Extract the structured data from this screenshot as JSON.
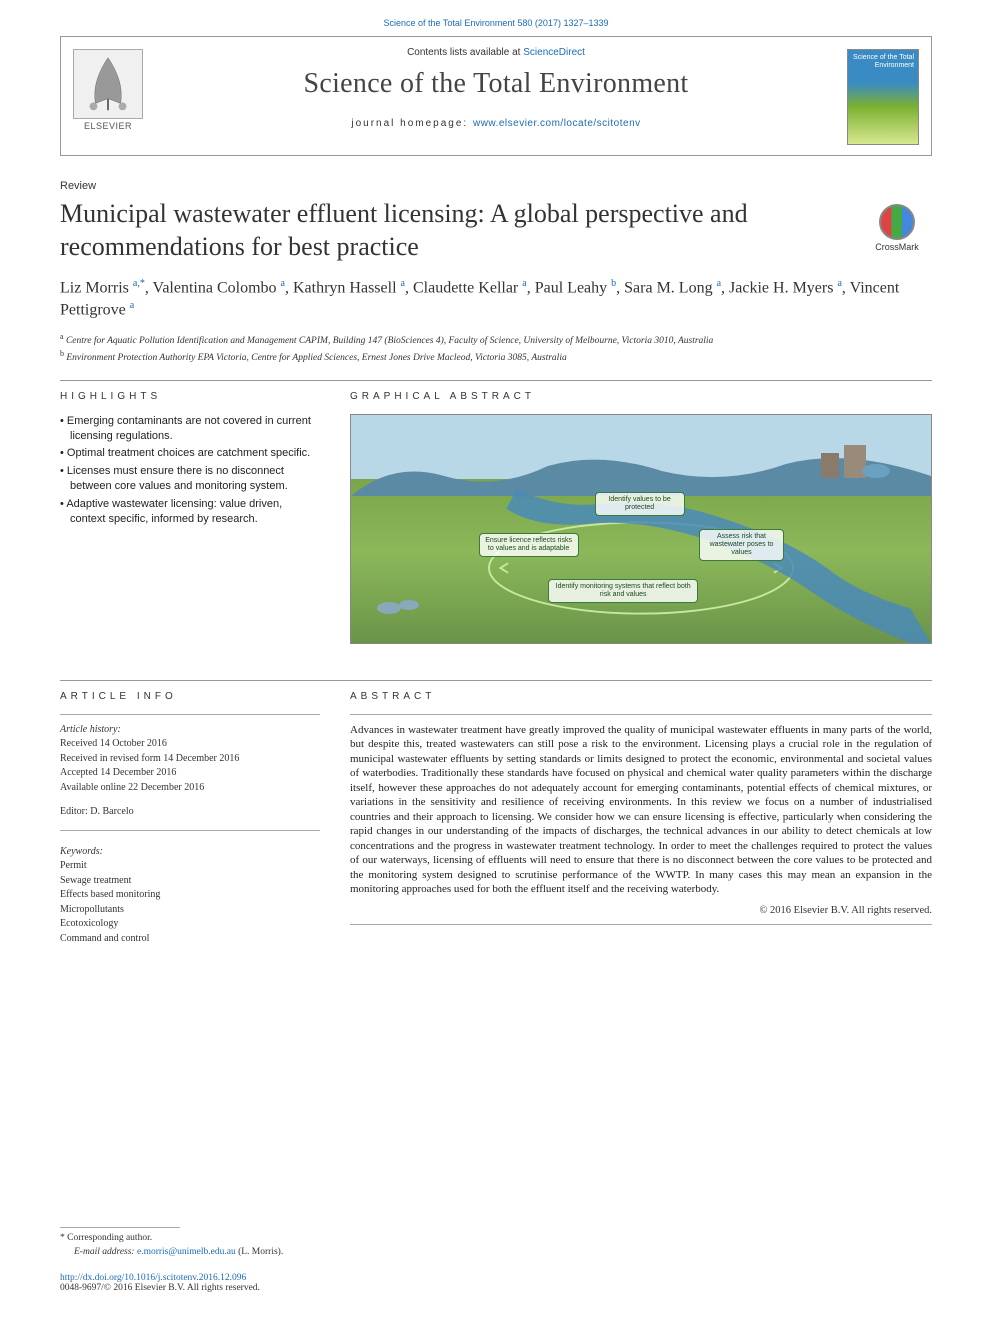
{
  "top_citation": "Science of the Total Environment 580 (2017) 1327–1339",
  "header": {
    "contents_prefix": "Contents lists available at ",
    "contents_link": "ScienceDirect",
    "journal_name": "Science of the Total Environment",
    "homepage_prefix": "journal homepage: ",
    "homepage_url": "www.elsevier.com/locate/scitotenv",
    "publisher": "ELSEVIER",
    "cover_text": "Science of the\nTotal Environment"
  },
  "article_type": "Review",
  "title": "Municipal wastewater effluent licensing: A global perspective and recommendations for best practice",
  "crossmark": "CrossMark",
  "authors_html": "Liz Morris <sup>a,*</sup>, Valentina Colombo <sup>a</sup>, Kathryn Hassell <sup>a</sup>, Claudette Kellar <sup>a</sup>, Paul Leahy <sup>b</sup>, Sara M. Long <sup>a</sup>, Jackie H. Myers <sup>a</sup>, Vincent Pettigrove <sup>a</sup>",
  "affiliations": [
    {
      "sup": "a",
      "text": "Centre for Aquatic Pollution Identification and Management CAPIM, Building 147 (BioSciences 4), Faculty of Science, University of Melbourne, Victoria 3010, Australia"
    },
    {
      "sup": "b",
      "text": "Environment Protection Authority EPA Victoria, Centre for Applied Sciences, Ernest Jones Drive Macleod, Victoria 3085, Australia"
    }
  ],
  "highlights": {
    "heading": "HIGHLIGHTS",
    "items": [
      "Emerging contaminants are not covered in current licensing regulations.",
      "Optimal treatment choices are catchment specific.",
      "Licenses must ensure there is no disconnect between core values and monitoring system.",
      "Adaptive wastewater licensing: value driven, context specific, informed by research."
    ]
  },
  "graphical": {
    "heading": "GRAPHICAL ABSTRACT",
    "boxes": {
      "identify_values": "Identify values\nto be protected",
      "ensure_licence": "Ensure licence reflects\nrisks to values\nand is adaptable",
      "assess_risk": "Assess risk that\nwastewater\nposes to values",
      "monitoring": "Identify monitoring systems that\nreflect both risk and values"
    },
    "colors": {
      "sky": "#b8d8e8",
      "hills_back": "#5a8aa4",
      "grass_light": "#8cb85a",
      "grass_dark": "#6a9448",
      "water": "#4a8ab8",
      "box_border": "#3a7a3a",
      "box_bg": "rgba(255,255,255,0.82)"
    }
  },
  "article_info": {
    "heading": "ARTICLE INFO",
    "history_head": "Article history:",
    "received": "Received 14 October 2016",
    "revised": "Received in revised form 14 December 2016",
    "accepted": "Accepted 14 December 2016",
    "online": "Available online 22 December 2016",
    "editor_label": "Editor:",
    "editor": "D. Barcelo"
  },
  "keywords": {
    "head": "Keywords:",
    "items": [
      "Permit",
      "Sewage treatment",
      "Effects based monitoring",
      "Micropollutants",
      "Ecotoxicology",
      "Command and control"
    ]
  },
  "abstract": {
    "heading": "ABSTRACT",
    "text": "Advances in wastewater treatment have greatly improved the quality of municipal wastewater effluents in many parts of the world, but despite this, treated wastewaters can still pose a risk to the environment. Licensing plays a crucial role in the regulation of municipal wastewater effluents by setting standards or limits designed to protect the economic, environmental and societal values of waterbodies. Traditionally these standards have focused on physical and chemical water quality parameters within the discharge itself, however these approaches do not adequately account for emerging contaminants, potential effects of chemical mixtures, or variations in the sensitivity and resilience of receiving environments. In this review we focus on a number of industrialised countries and their approach to licensing. We consider how we can ensure licensing is effective, particularly when considering the rapid changes in our understanding of the impacts of discharges, the technical advances in our ability to detect chemicals at low concentrations and the progress in wastewater treatment technology. In order to meet the challenges required to protect the values of our waterways, licensing of effluents will need to ensure that there is no disconnect between the core values to be protected and the monitoring system designed to scrutinise performance of the WWTP. In many cases this may mean an expansion in the monitoring approaches used for both the effluent itself and the receiving waterbody.",
    "copyright": "© 2016 Elsevier B.V. All rights reserved."
  },
  "footer": {
    "corresponding_label": "* Corresponding author.",
    "email_label": "E-mail address:",
    "email": "e.morris@unimelb.edu.au",
    "email_name": "(L. Morris).",
    "doi": "http://dx.doi.org/10.1016/j.scitotenv.2016.12.096",
    "issn_line": "0048-9697/© 2016 Elsevier B.V. All rights reserved."
  }
}
